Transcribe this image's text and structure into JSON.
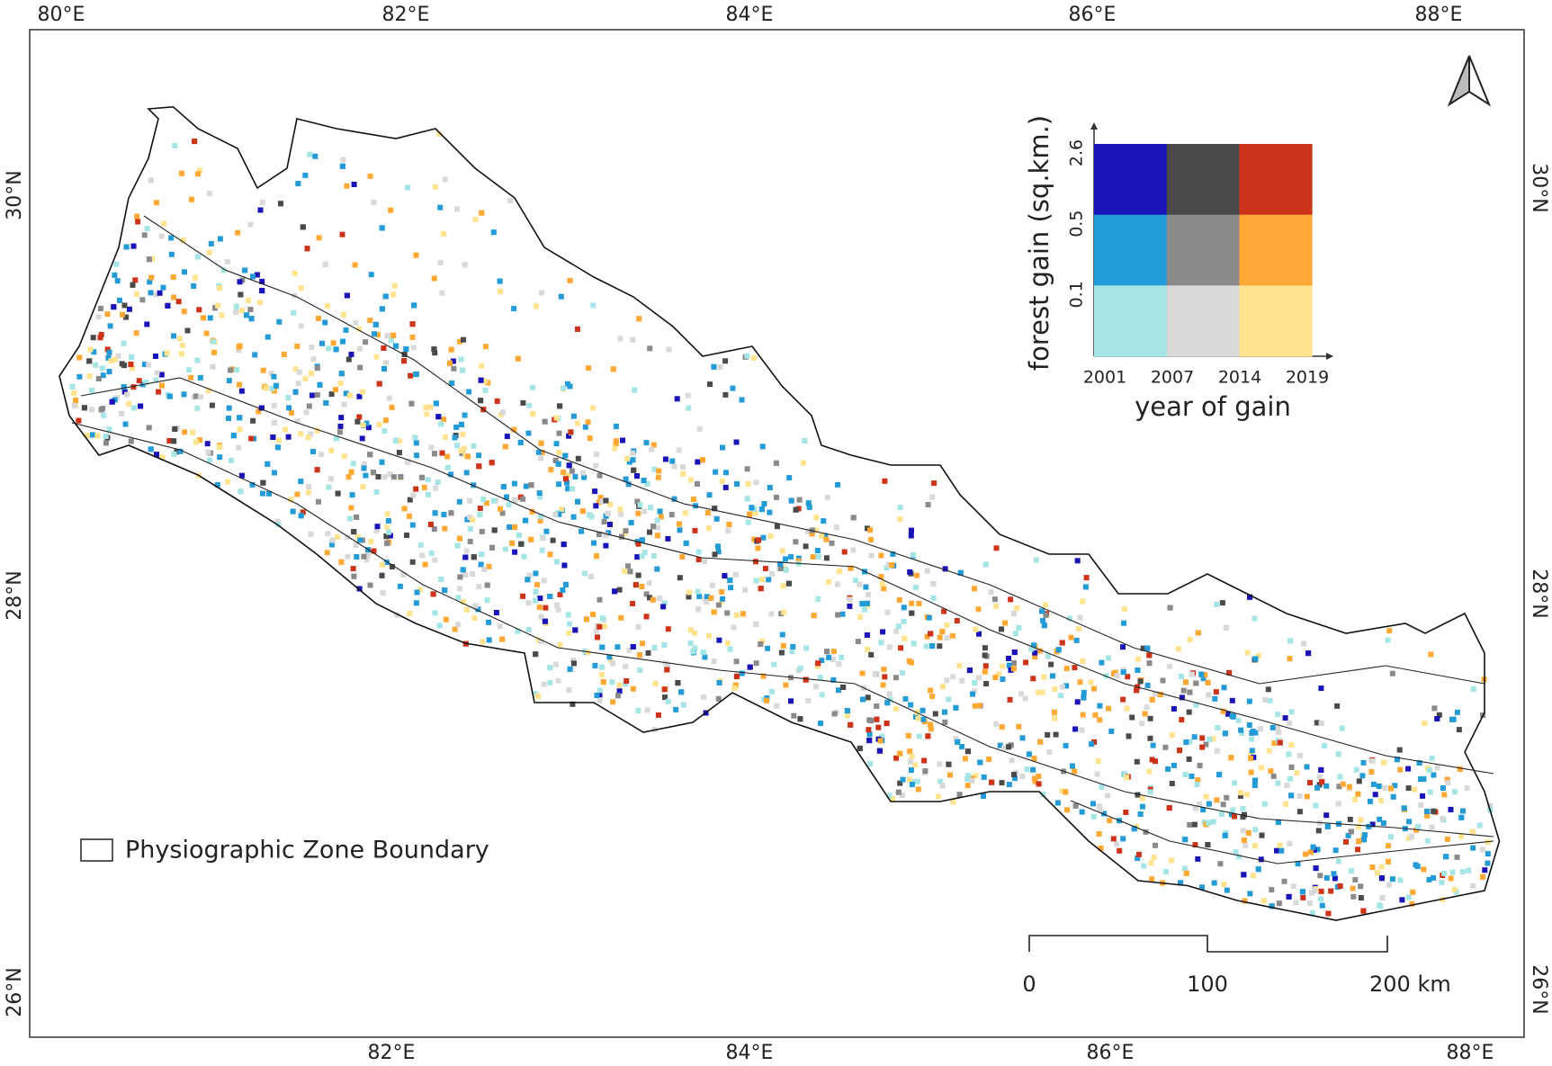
{
  "map": {
    "graticule": {
      "top": [
        "80°E",
        "82°E",
        "84°E",
        "86°E",
        "88°E"
      ],
      "bottom": [
        "82°E",
        "84°E",
        "86°E",
        "88°E"
      ],
      "left": [
        "30°N",
        "28°N",
        "26°N"
      ],
      "right": [
        "30°N",
        "28°N",
        "26°N"
      ]
    },
    "legend": {
      "y_title": "forest gain (sq.km.)",
      "x_title": "year of gain",
      "y_ticks": [
        "2.6",
        "0.5",
        "0.1"
      ],
      "x_ticks": [
        "2001",
        "2007",
        "2014",
        "2019"
      ],
      "colors": [
        [
          "#1a14b8",
          "#4a4a4a",
          "#cc3318"
        ],
        [
          "#239bd6",
          "#8a8a8a",
          "#ffa834"
        ],
        [
          "#a6e5e5",
          "#d9d9d9",
          "#ffe38f"
        ]
      ]
    },
    "scale_bar": {
      "labels": [
        "0",
        "100",
        "200 km"
      ]
    },
    "boundary_legend": "Physiographic Zone Boundary"
  }
}
